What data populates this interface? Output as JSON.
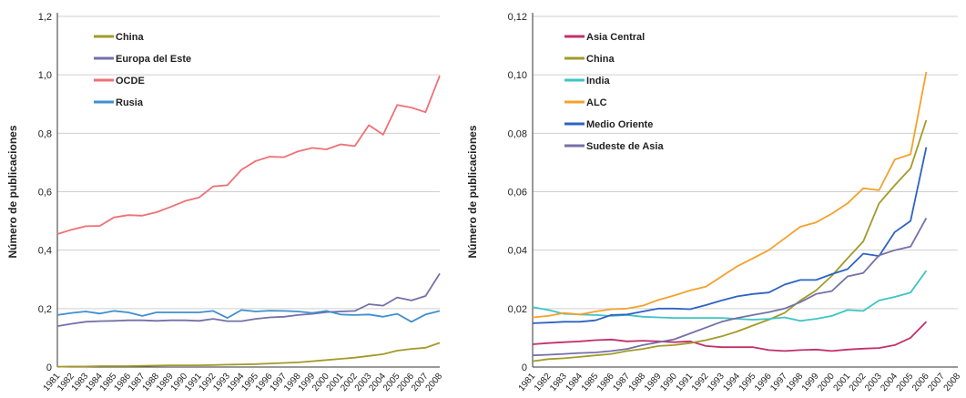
{
  "chart_data": [
    {
      "type": "line",
      "xlabel": "",
      "ylabel": "Número de publicaciones",
      "ylim": [
        0,
        1.2
      ],
      "yticks": [
        "0",
        "0,2",
        "0,4",
        "0,6",
        "0,8",
        "1,0",
        "1,2"
      ],
      "x": [
        "1981",
        "1982",
        "1983",
        "1984",
        "1985",
        "1986",
        "1987",
        "1988",
        "1989",
        "1990",
        "1991",
        "1992",
        "1993",
        "1994",
        "1995",
        "1996",
        "1997",
        "1998",
        "1999",
        "2000",
        "2001",
        "2002",
        "2003",
        "2004",
        "2005",
        "2006",
        "2007",
        "2008"
      ],
      "grid": true,
      "legend": "top-left",
      "series": [
        {
          "name": "China",
          "color": "#a39a2a",
          "values": [
            0.001,
            0.002,
            0.002,
            0.003,
            0.003,
            0.003,
            0.004,
            0.005,
            0.006,
            0.006,
            0.006,
            0.007,
            0.008,
            0.009,
            0.01,
            0.012,
            0.014,
            0.016,
            0.02,
            0.024,
            0.028,
            0.032,
            0.038,
            0.044,
            0.056,
            0.062,
            0.066,
            0.083
          ]
        },
        {
          "name": "Europa del Este",
          "color": "#7470a8",
          "values": [
            0.14,
            0.148,
            0.155,
            0.157,
            0.158,
            0.16,
            0.16,
            0.158,
            0.16,
            0.16,
            0.158,
            0.165,
            0.157,
            0.157,
            0.165,
            0.17,
            0.172,
            0.178,
            0.182,
            0.188,
            0.19,
            0.192,
            0.215,
            0.21,
            0.238,
            0.228,
            0.243,
            0.32
          ]
        },
        {
          "name": "OCDE",
          "color": "#f07075",
          "values": [
            0.455,
            0.47,
            0.482,
            0.483,
            0.512,
            0.52,
            0.518,
            0.53,
            0.548,
            0.568,
            0.58,
            0.618,
            0.622,
            0.675,
            0.705,
            0.72,
            0.718,
            0.738,
            0.75,
            0.745,
            0.762,
            0.756,
            0.828,
            0.795,
            0.897,
            0.888,
            0.872,
            0.997
          ]
        },
        {
          "name": "Rusia",
          "color": "#3f8fcf",
          "values": [
            0.178,
            0.185,
            0.19,
            0.183,
            0.192,
            0.187,
            0.175,
            0.187,
            0.187,
            0.187,
            0.187,
            0.192,
            0.168,
            0.195,
            0.19,
            0.193,
            0.192,
            0.19,
            0.185,
            0.192,
            0.18,
            0.178,
            0.18,
            0.172,
            0.182,
            0.155,
            0.18,
            0.192
          ]
        }
      ]
    },
    {
      "type": "line",
      "xlabel": "",
      "ylabel": "Número de publicaciones",
      "ylim": [
        0,
        0.12
      ],
      "yticks": [
        "0",
        "0,02",
        "0,04",
        "0,06",
        "0,08",
        "0,10",
        "0,12"
      ],
      "x": [
        "1981",
        "1982",
        "1983",
        "1984",
        "1985",
        "1986",
        "1987",
        "1988",
        "1989",
        "1990",
        "1991",
        "1992",
        "1993",
        "1994",
        "1995",
        "1996",
        "1997",
        "1998",
        "1999",
        "2000",
        "2001",
        "2002",
        "2003",
        "2004",
        "2005",
        "2006",
        "2007",
        "2008"
      ],
      "grid": true,
      "legend": "top-left",
      "series": [
        {
          "name": "Asia Central",
          "color": "#c2306a",
          "values": [
            0.0078,
            0.0082,
            0.0085,
            0.0088,
            0.0092,
            0.0094,
            0.0088,
            0.009,
            0.0088,
            0.0085,
            0.0088,
            0.0072,
            0.0068,
            0.0068,
            0.0068,
            0.0058,
            0.0055,
            0.0058,
            0.006,
            0.0055,
            0.006,
            0.0063,
            0.0065,
            0.0075,
            0.01,
            0.0155,
            null,
            null
          ]
        },
        {
          "name": "China",
          "color": "#a39a2a",
          "values": [
            0.002,
            0.0027,
            0.003,
            0.0035,
            0.004,
            0.0045,
            0.0055,
            0.0062,
            0.0072,
            0.0075,
            0.0082,
            0.0092,
            0.0105,
            0.0122,
            0.0142,
            0.0162,
            0.0185,
            0.0228,
            0.0262,
            0.0312,
            0.0372,
            0.043,
            0.056,
            0.0622,
            0.068,
            0.0845,
            null,
            null
          ]
        },
        {
          "name": "India",
          "color": "#3ec4c4",
          "values": [
            0.0205,
            0.0195,
            0.0182,
            0.018,
            0.0178,
            0.0175,
            0.0178,
            0.0172,
            0.017,
            0.0168,
            0.0168,
            0.0168,
            0.0168,
            0.0165,
            0.0162,
            0.0165,
            0.017,
            0.0158,
            0.0165,
            0.0175,
            0.0195,
            0.0192,
            0.0228,
            0.024,
            0.0255,
            0.033,
            null,
            null
          ]
        },
        {
          "name": "ALC",
          "color": "#f5a12d",
          "values": [
            0.017,
            0.0175,
            0.0185,
            0.018,
            0.019,
            0.0198,
            0.02,
            0.021,
            0.023,
            0.0245,
            0.0262,
            0.0275,
            0.031,
            0.0345,
            0.0372,
            0.04,
            0.044,
            0.048,
            0.0495,
            0.0525,
            0.056,
            0.0612,
            0.0605,
            0.071,
            0.0728,
            0.101,
            null,
            null
          ]
        },
        {
          "name": "Medio Oriente",
          "color": "#2d63c2",
          "values": [
            0.015,
            0.0152,
            0.0155,
            0.0155,
            0.016,
            0.0178,
            0.018,
            0.019,
            0.02,
            0.02,
            0.0198,
            0.0212,
            0.0228,
            0.0242,
            0.025,
            0.0255,
            0.0282,
            0.0298,
            0.0298,
            0.0318,
            0.0335,
            0.0388,
            0.038,
            0.0462,
            0.05,
            0.0752,
            null,
            null
          ]
        },
        {
          "name": "Sudeste de Asia",
          "color": "#7470a8",
          "values": [
            0.004,
            0.0042,
            0.0045,
            0.0048,
            0.005,
            0.0055,
            0.0062,
            0.0075,
            0.0085,
            0.0095,
            0.0115,
            0.0135,
            0.0155,
            0.0168,
            0.0178,
            0.0188,
            0.02,
            0.0222,
            0.025,
            0.026,
            0.031,
            0.0322,
            0.0382,
            0.04,
            0.0412,
            0.051,
            null,
            null
          ]
        }
      ]
    }
  ]
}
